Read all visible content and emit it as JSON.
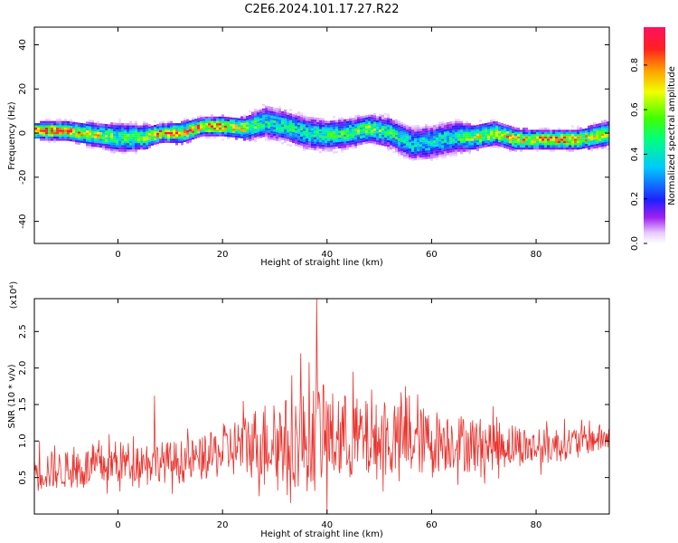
{
  "title": "C2E6.2024.101.17.27.R22",
  "colors": {
    "snr_line": "#e8332e",
    "frame": "#000000"
  },
  "chart_data": [
    {
      "type": "heatmap",
      "xlabel": "Height of straight line (km)",
      "ylabel": "Frequency (Hz)",
      "xlim": [
        -16,
        94
      ],
      "ylim": [
        -50,
        48
      ],
      "xticks": [
        0,
        20,
        40,
        60,
        80
      ],
      "yticks": [
        -40,
        -20,
        0,
        20,
        40
      ],
      "colorbar": {
        "label": "Normalized spectral amplitude",
        "range": [
          0,
          0.97
        ],
        "ticks": [
          0.0,
          0.2,
          0.4,
          0.6,
          0.8
        ],
        "colormap": "rainbow (white-violet-blue-cyan-green-yellow-orange-red-magenta)"
      },
      "ridge": {
        "x": [
          -16,
          -10,
          -4,
          0,
          5,
          8,
          12,
          16,
          20,
          24,
          28,
          32,
          36,
          40,
          44,
          48,
          52,
          56,
          60,
          64,
          68,
          72,
          76,
          80,
          84,
          88,
          94
        ],
        "freq_center": [
          1,
          1,
          -1,
          -2,
          -2,
          0,
          0,
          3,
          3,
          2,
          5,
          3,
          0,
          -1,
          0,
          2,
          0,
          -5,
          -4,
          -2,
          -2,
          0,
          -3,
          -3,
          -3,
          -3,
          0
        ],
        "peak_amplitude": [
          0.95,
          0.9,
          0.75,
          0.6,
          0.7,
          0.95,
          0.8,
          0.95,
          0.85,
          0.8,
          0.5,
          0.55,
          0.5,
          0.55,
          0.6,
          0.65,
          0.55,
          0.45,
          0.5,
          0.5,
          0.7,
          0.75,
          0.8,
          0.9,
          0.9,
          0.85,
          0.7
        ]
      }
    },
    {
      "type": "line",
      "series": [
        {
          "name": "",
          "x_range": [
            -16,
            94
          ],
          "y_envelope": {
            "x": [
              -16,
              -10,
              -4,
              0,
              6,
              10,
              16,
              20,
              24,
              28,
              32,
              36,
              38,
              40,
              44,
              48,
              52,
              56,
              60,
              64,
              68,
              72,
              76,
              80,
              84,
              88,
              94
            ],
            "mean": [
              0.6,
              0.6,
              0.65,
              0.7,
              0.75,
              0.7,
              0.75,
              0.85,
              0.95,
              1.0,
              1.0,
              1.0,
              1.1,
              1.05,
              1.05,
              1.0,
              1.0,
              1.0,
              1.0,
              1.0,
              0.95,
              0.95,
              0.95,
              0.9,
              0.95,
              1.0,
              1.05
            ],
            "spread": [
              0.3,
              0.25,
              0.3,
              0.3,
              0.25,
              0.3,
              0.3,
              0.35,
              0.45,
              0.55,
              0.6,
              0.7,
              0.8,
              0.65,
              0.6,
              0.55,
              0.5,
              0.5,
              0.45,
              0.4,
              0.4,
              0.35,
              0.3,
              0.25,
              0.25,
              0.2,
              0.2
            ],
            "spikes": [
              [
                -15,
                1.0
              ],
              [
                7,
                1.62
              ],
              [
                35,
                2.2
              ],
              [
                38,
                2.95
              ],
              [
                40,
                2.3
              ],
              [
                45,
                1.95
              ],
              [
                55,
                1.75
              ],
              [
                40,
                0.0
              ],
              [
                33,
                0.15
              ]
            ]
          }
        }
      ],
      "xlabel": "Height of straight line (km)",
      "ylabel": "SNR (10 * v/v)",
      "yunit": "(x10⁴)",
      "xlim": [
        -16,
        94
      ],
      "ylim": [
        0,
        2.95
      ],
      "xticks": [
        0,
        20,
        40,
        60,
        80
      ],
      "yticks": [
        0.5,
        1.0,
        1.5,
        2.0,
        2.5
      ],
      "yticklabels": [
        "0.5",
        "1.0",
        "1.5",
        "2.0",
        "2.5"
      ]
    }
  ]
}
